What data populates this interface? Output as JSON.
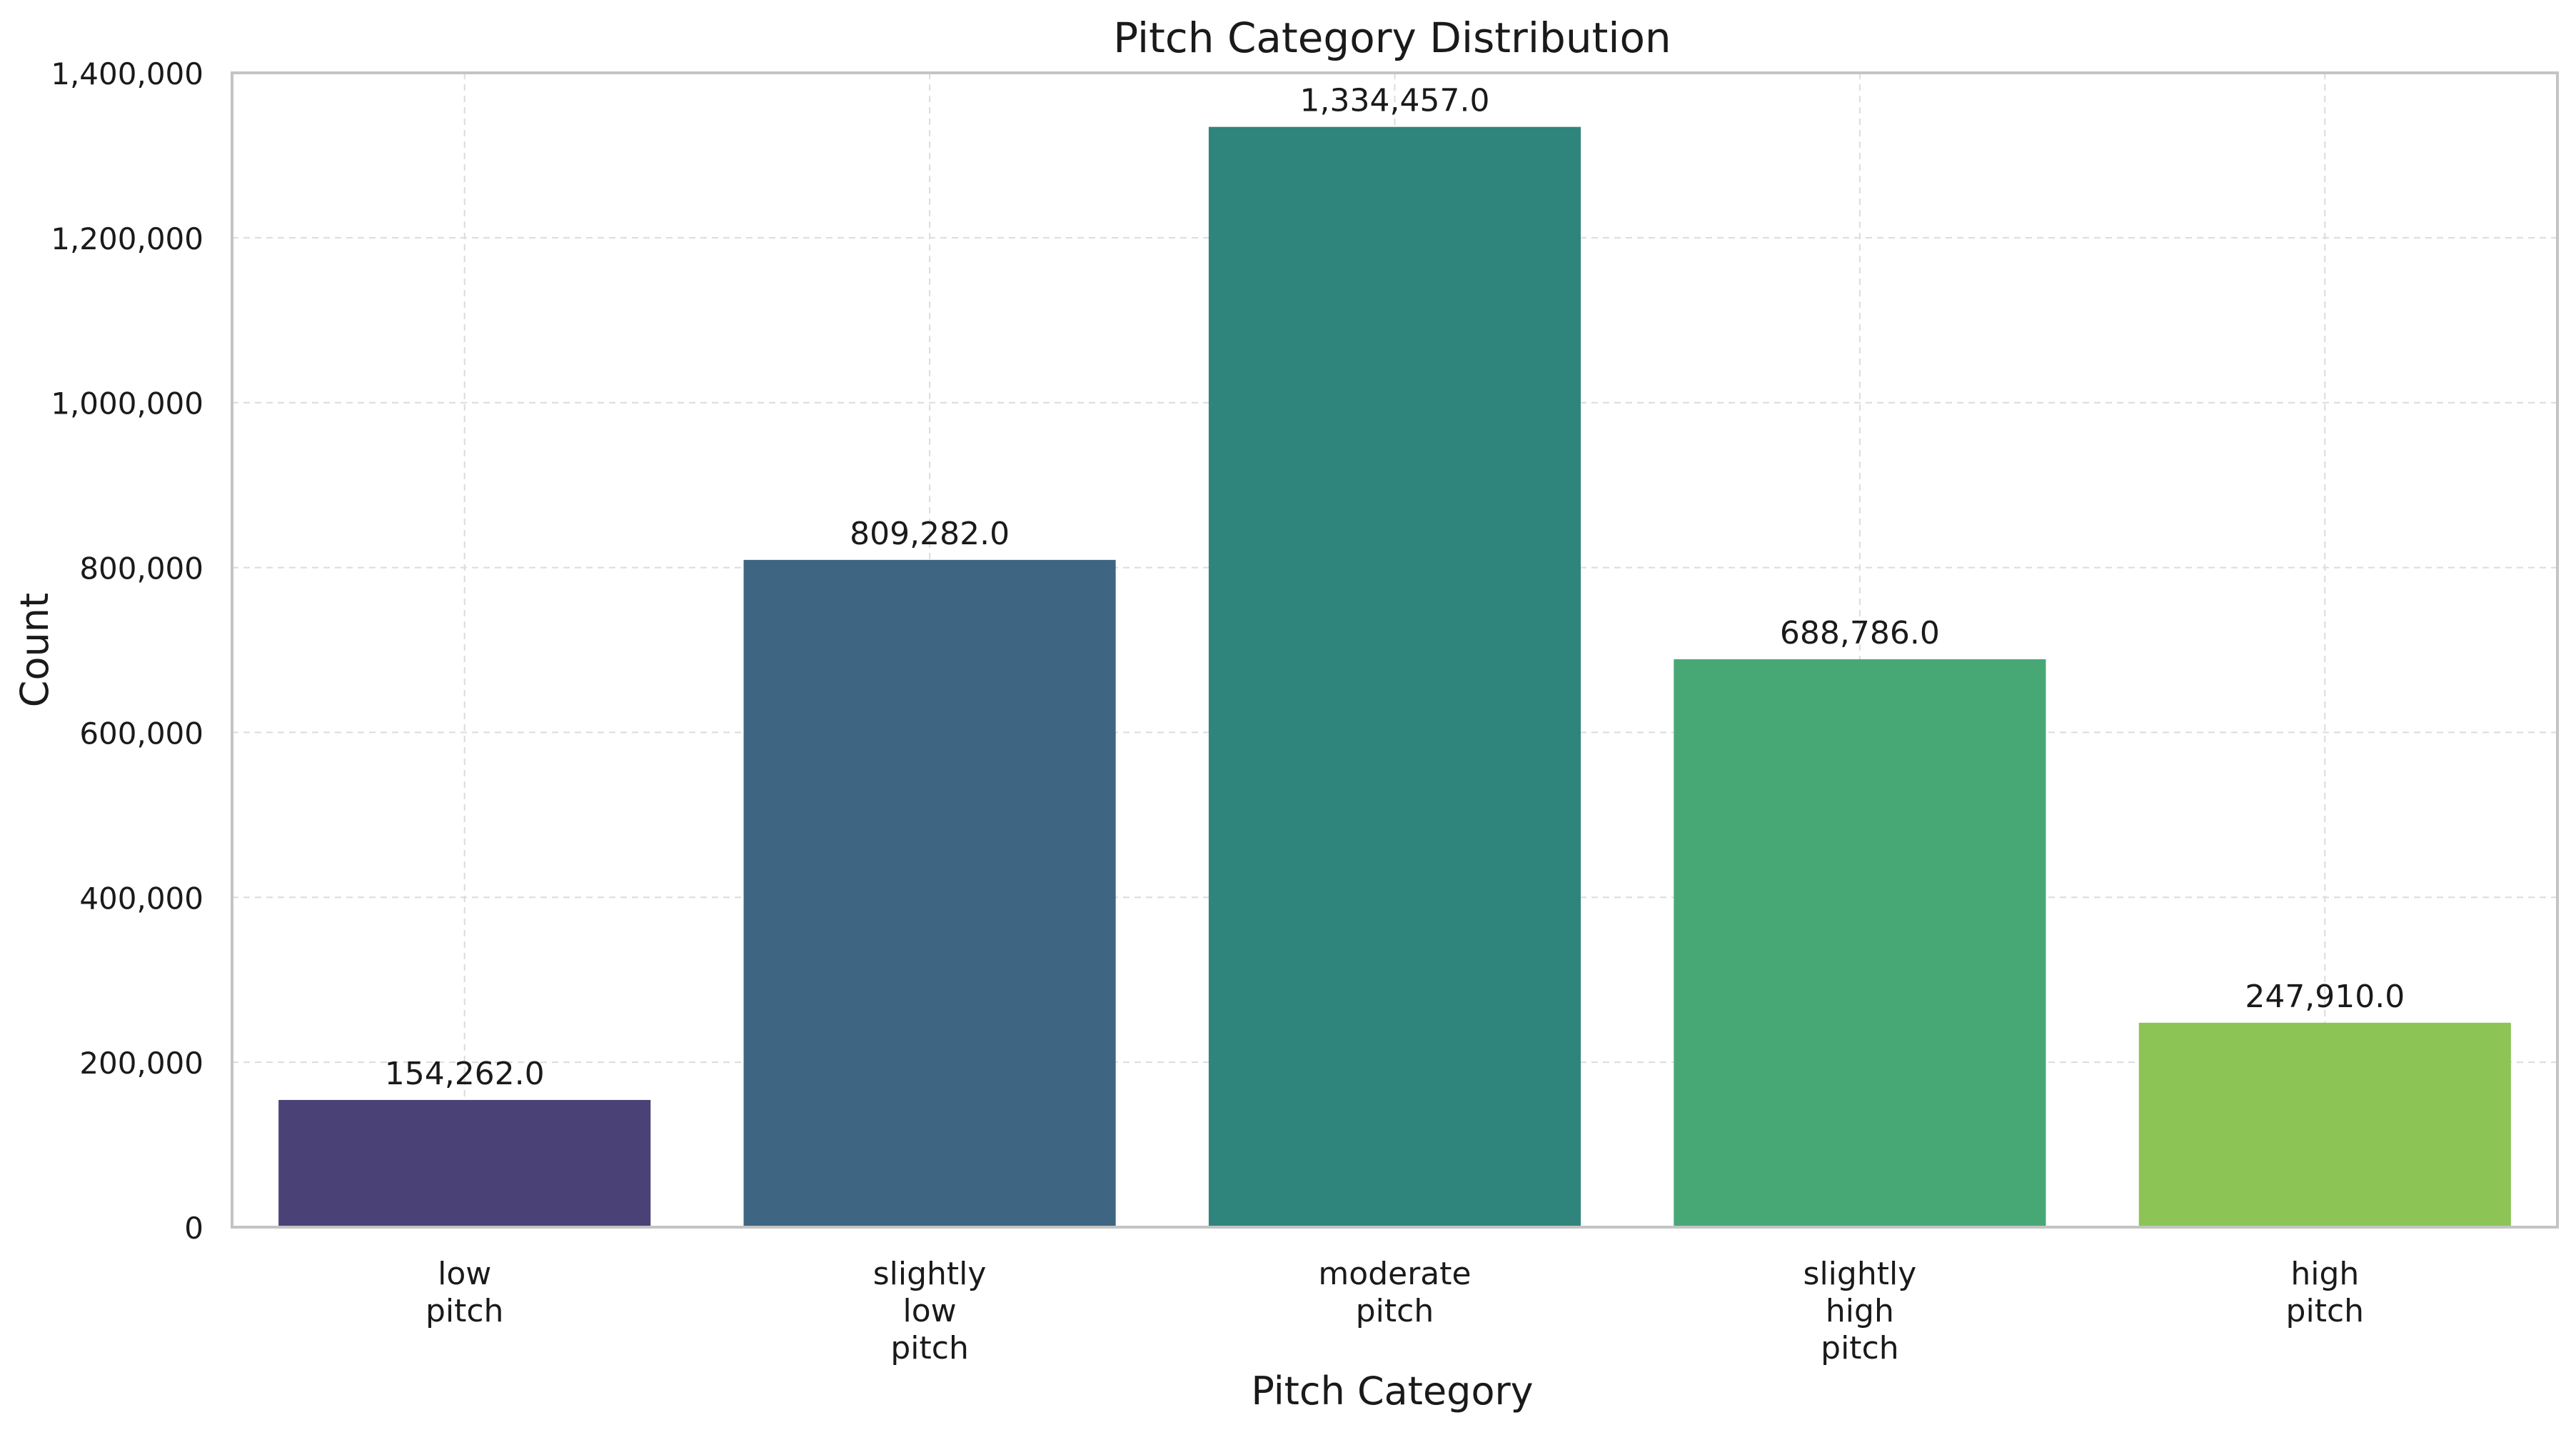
{
  "chart_data": {
    "type": "bar",
    "title": "Pitch Category Distribution",
    "xlabel": "Pitch Category",
    "ylabel": "Count",
    "categories": [
      "low\npitch",
      "slightly\nlow\npitch",
      "moderate\npitch",
      "slightly\nhigh\npitch",
      "high\npitch"
    ],
    "values": [
      154262,
      809282,
      1334457,
      688786,
      247910
    ],
    "value_labels": [
      "154,262.0",
      "809,282.0",
      "1,334,457.0",
      "688,786.0",
      "247,910.0"
    ],
    "colors": [
      "#4a4277",
      "#3e6581",
      "#2f857c",
      "#47a876",
      "#8cc455"
    ],
    "ylim": [
      0,
      1400000
    ],
    "yticks": [
      0,
      200000,
      400000,
      600000,
      800000,
      1000000,
      1200000,
      1400000
    ],
    "ytick_labels": [
      "0",
      "200,000",
      "400,000",
      "600,000",
      "800,000",
      "1,000,000",
      "1,200,000",
      "1,400,000"
    ],
    "grid": true,
    "legend": false
  }
}
